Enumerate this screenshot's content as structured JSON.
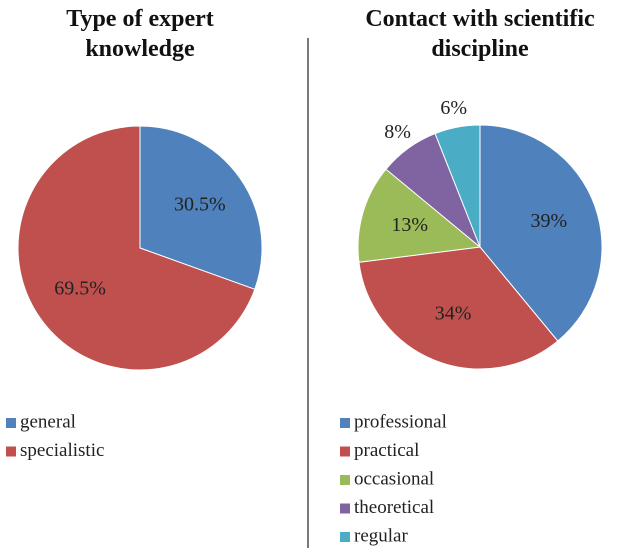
{
  "chart_data": [
    {
      "type": "pie",
      "title": "Type of expert knowledge",
      "categories": [
        "general",
        "specialistic"
      ],
      "values": [
        30.5,
        69.5
      ],
      "value_labels": [
        "30.5%",
        "69.5%"
      ],
      "colors": [
        "#4f81bd",
        "#c0504d"
      ],
      "legend": "bottom-left"
    },
    {
      "type": "pie",
      "title": "Contact with scientific discipline",
      "categories": [
        "professional",
        "practical",
        "occasional",
        "theoretical",
        "regular"
      ],
      "values": [
        39,
        34,
        13,
        8,
        6
      ],
      "value_labels": [
        "39%",
        "34%",
        "13%",
        "8%",
        "6%"
      ],
      "colors": [
        "#4f81bd",
        "#c0504d",
        "#9bbb59",
        "#8064a2",
        "#4bacc6"
      ],
      "legend": "bottom-left"
    }
  ]
}
